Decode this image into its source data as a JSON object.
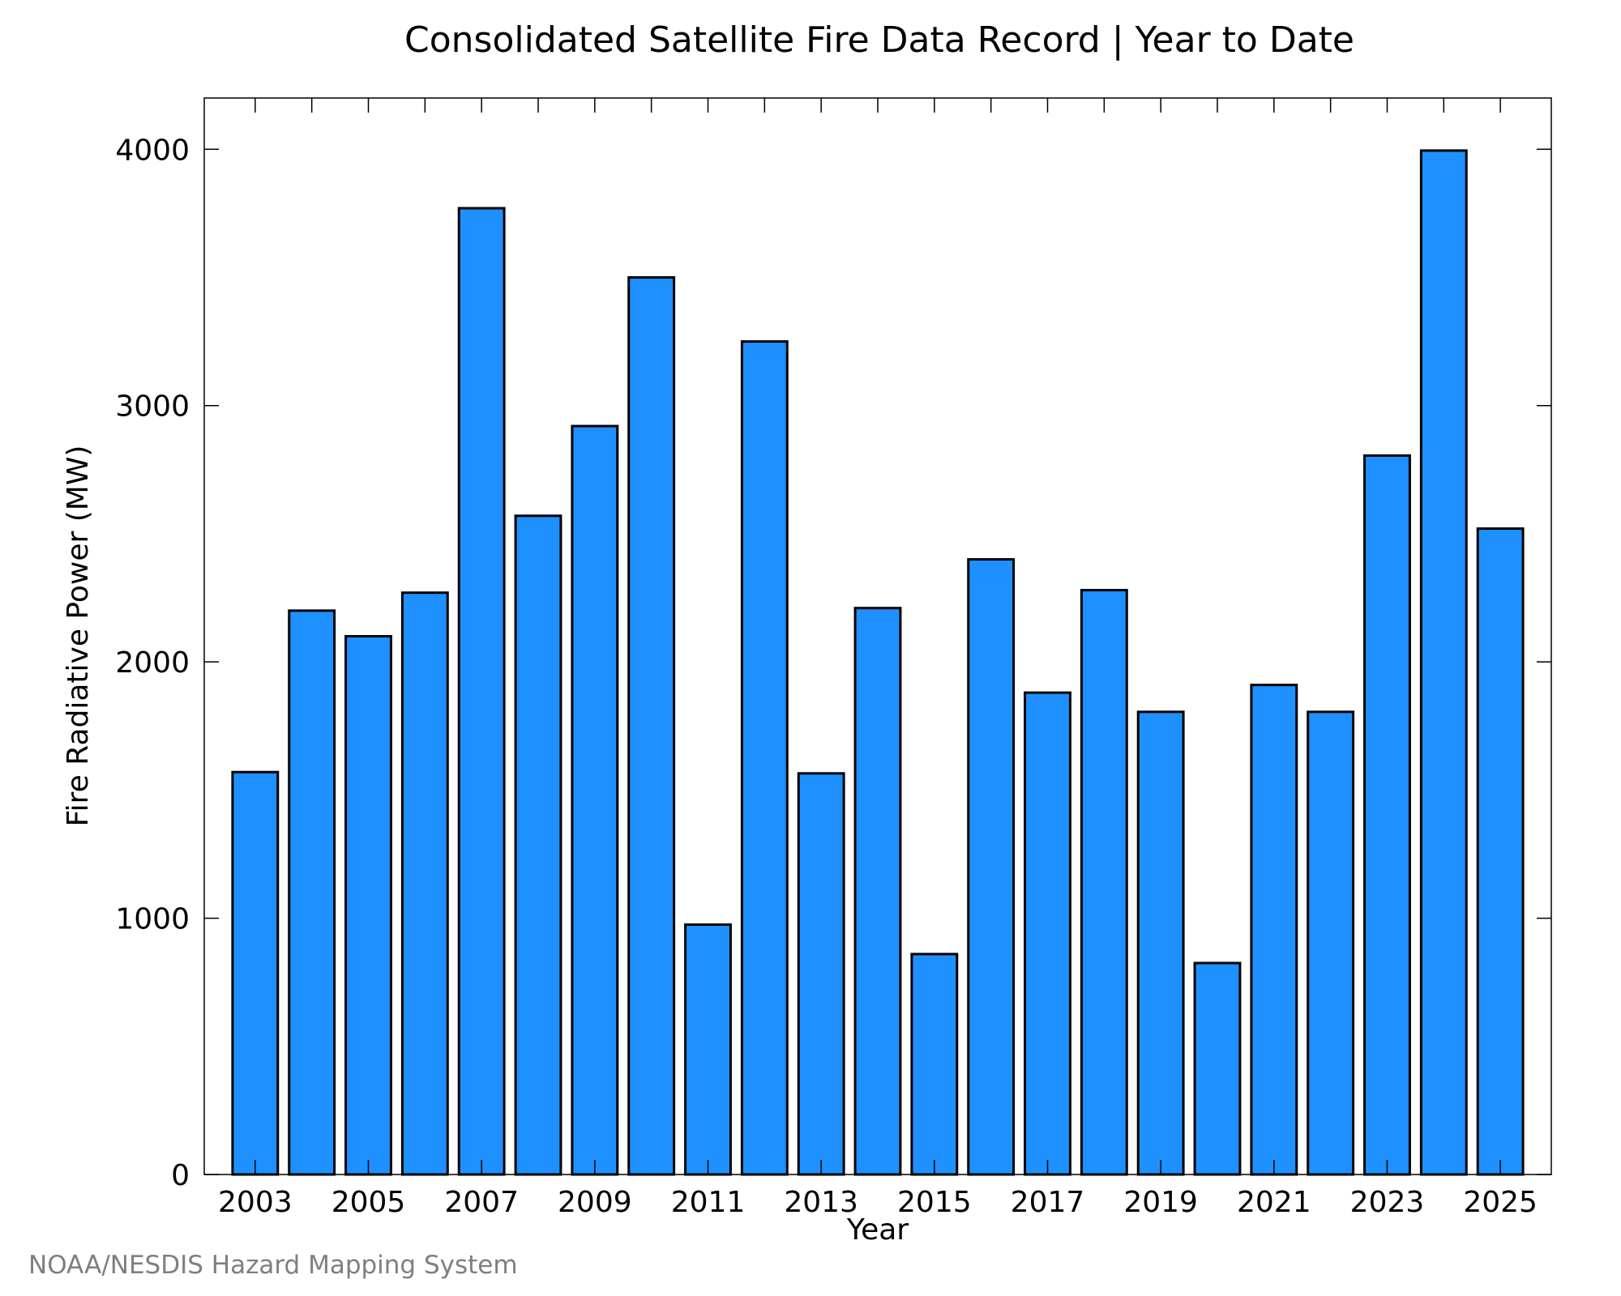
{
  "chart_data": {
    "type": "bar",
    "title": "Consolidated Satellite Fire Data Record | Year to Date",
    "xlabel": "Year",
    "ylabel": "Fire Radiative Power (MW)",
    "ylim": [
      0,
      4200
    ],
    "yticks": [
      0,
      1000,
      2000,
      3000,
      4000
    ],
    "xticks": [
      2003,
      2005,
      2007,
      2009,
      2011,
      2013,
      2015,
      2017,
      2019,
      2021,
      2023,
      2025
    ],
    "grid": false,
    "categories": [
      2003,
      2004,
      2005,
      2006,
      2007,
      2008,
      2009,
      2010,
      2011,
      2012,
      2013,
      2014,
      2015,
      2016,
      2017,
      2018,
      2019,
      2020,
      2021,
      2022,
      2023,
      2024,
      2025
    ],
    "values": [
      1570,
      2200,
      2100,
      2270,
      3770,
      2570,
      2920,
      3500,
      975,
      3250,
      1565,
      2210,
      860,
      2400,
      1880,
      2280,
      1805,
      825,
      1910,
      1805,
      2805,
      3995,
      2520
    ],
    "bar_color": "#1e90ff",
    "edge_color": "#000000"
  },
  "credit": "NOAA/NESDIS Hazard Mapping System"
}
